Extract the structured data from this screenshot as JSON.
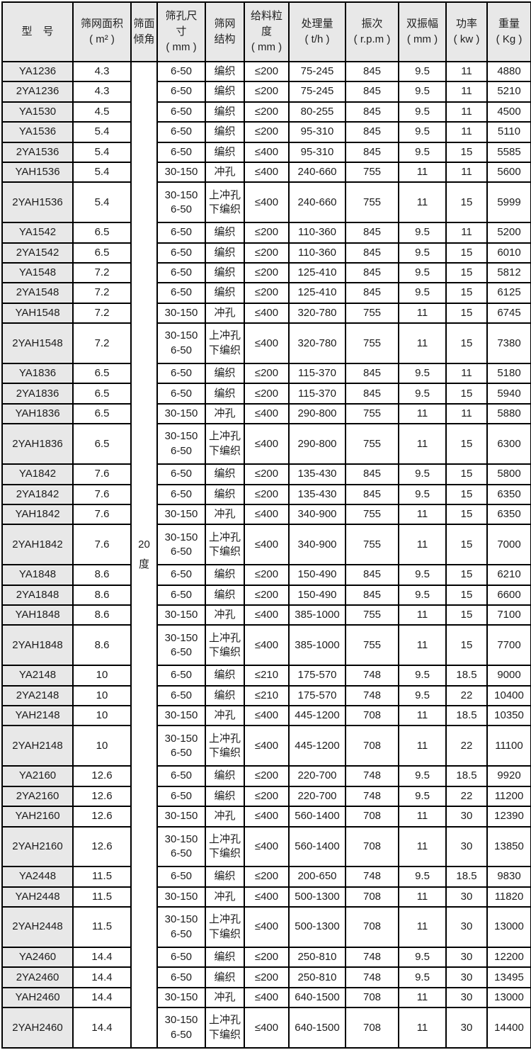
{
  "table": {
    "columns": [
      {
        "id": "model",
        "lines": [
          "型　号"
        ]
      },
      {
        "id": "area",
        "lines": [
          "筛网面积",
          "( m² )"
        ]
      },
      {
        "id": "incline",
        "lines": [
          "筛面",
          "倾角"
        ]
      },
      {
        "id": "mesh",
        "lines": [
          "筛孔尺",
          "寸",
          "( mm )"
        ]
      },
      {
        "id": "structure",
        "lines": [
          "筛网",
          "结构"
        ]
      },
      {
        "id": "feed",
        "lines": [
          "给料粒",
          "度",
          "( mm )"
        ]
      },
      {
        "id": "capacity",
        "lines": [
          "处理量",
          "( t/h )"
        ]
      },
      {
        "id": "freq",
        "lines": [
          "振次",
          "( r.p.m )"
        ]
      },
      {
        "id": "amplitude",
        "lines": [
          "双振幅",
          "( mm )"
        ]
      },
      {
        "id": "power",
        "lines": [
          "功率",
          "( kw )"
        ]
      },
      {
        "id": "weight",
        "lines": [
          "重量",
          "( Kg )"
        ]
      }
    ],
    "incline": {
      "lines": [
        "20",
        "度"
      ]
    },
    "colors": {
      "header_bg": "#e8e8e8",
      "model_col_bg": "#e8e8e8",
      "cell_bg": "#ffffff",
      "border": "#000000"
    },
    "rows": [
      {
        "model": "YA1236",
        "area": "4.3",
        "mesh": [
          "6-50"
        ],
        "structure": [
          "编织"
        ],
        "feed": "≤200",
        "capacity": "75-245",
        "freq": "845",
        "amplitude": "9.5",
        "power": "11",
        "weight": "4880"
      },
      {
        "model": "2YA1236",
        "area": "4.3",
        "mesh": [
          "6-50"
        ],
        "structure": [
          "编织"
        ],
        "feed": "≤200",
        "capacity": "75-245",
        "freq": "845",
        "amplitude": "9.5",
        "power": "11",
        "weight": "5210"
      },
      {
        "model": "YA1530",
        "area": "4.5",
        "mesh": [
          "6-50"
        ],
        "structure": [
          "编织"
        ],
        "feed": "≤200",
        "capacity": "80-255",
        "freq": "845",
        "amplitude": "9.5",
        "power": "11",
        "weight": "4500"
      },
      {
        "model": "YA1536",
        "area": "5.4",
        "mesh": [
          "6-50"
        ],
        "structure": [
          "编织"
        ],
        "feed": "≤200",
        "capacity": "95-310",
        "freq": "845",
        "amplitude": "9.5",
        "power": "11",
        "weight": "5110"
      },
      {
        "model": "2YA1536",
        "area": "5.4",
        "mesh": [
          "6-50"
        ],
        "structure": [
          "编织"
        ],
        "feed": "≤400",
        "capacity": "95-310",
        "freq": "845",
        "amplitude": "9.5",
        "power": "15",
        "weight": "5585"
      },
      {
        "model": "YAH1536",
        "area": "5.4",
        "mesh": [
          "30-150"
        ],
        "structure": [
          "冲孔"
        ],
        "feed": "≤400",
        "capacity": "240-660",
        "freq": "755",
        "amplitude": "11",
        "power": "11",
        "weight": "5600"
      },
      {
        "model": "2YAH1536",
        "area": "5.4",
        "mesh": [
          "30-150",
          "6-50"
        ],
        "structure": [
          "上冲孔",
          "下编织"
        ],
        "feed": "≤400",
        "capacity": "240-660",
        "freq": "755",
        "amplitude": "11",
        "power": "15",
        "weight": "5999"
      },
      {
        "model": "YA1542",
        "area": "6.5",
        "mesh": [
          "6-50"
        ],
        "structure": [
          "编织"
        ],
        "feed": "≤200",
        "capacity": "110-360",
        "freq": "845",
        "amplitude": "9.5",
        "power": "11",
        "weight": "5200"
      },
      {
        "model": "2YA1542",
        "area": "6.5",
        "mesh": [
          "6-50"
        ],
        "structure": [
          "编织"
        ],
        "feed": "≤200",
        "capacity": "110-360",
        "freq": "845",
        "amplitude": "9.5",
        "power": "15",
        "weight": "6010"
      },
      {
        "model": "YA1548",
        "area": "7.2",
        "mesh": [
          "6-50"
        ],
        "structure": [
          "编织"
        ],
        "feed": "≤200",
        "capacity": "125-410",
        "freq": "845",
        "amplitude": "9.5",
        "power": "15",
        "weight": "5812"
      },
      {
        "model": "2YA1548",
        "area": "7.2",
        "mesh": [
          "6-50"
        ],
        "structure": [
          "编织"
        ],
        "feed": "≤200",
        "capacity": "125-410",
        "freq": "845",
        "amplitude": "9.5",
        "power": "15",
        "weight": "6125"
      },
      {
        "model": "YAH1548",
        "area": "7.2",
        "mesh": [
          "30-150"
        ],
        "structure": [
          "冲孔"
        ],
        "feed": "≤400",
        "capacity": "320-780",
        "freq": "755",
        "amplitude": "11",
        "power": "15",
        "weight": "6745"
      },
      {
        "model": "2YAH1548",
        "area": "7.2",
        "mesh": [
          "30-150",
          "6-50"
        ],
        "structure": [
          "上冲孔",
          "下编织"
        ],
        "feed": "≤400",
        "capacity": "320-780",
        "freq": "755",
        "amplitude": "11",
        "power": "15",
        "weight": "7380"
      },
      {
        "model": "YA1836",
        "area": "6.5",
        "mesh": [
          "6-50"
        ],
        "structure": [
          "编织"
        ],
        "feed": "≤200",
        "capacity": "115-370",
        "freq": "845",
        "amplitude": "9.5",
        "power": "11",
        "weight": "5180"
      },
      {
        "model": "2YA1836",
        "area": "6.5",
        "mesh": [
          "6-50"
        ],
        "structure": [
          "编织"
        ],
        "feed": "≤200",
        "capacity": "115-370",
        "freq": "845",
        "amplitude": "9.5",
        "power": "15",
        "weight": "5940"
      },
      {
        "model": "YAH1836",
        "area": "6.5",
        "mesh": [
          "30-150"
        ],
        "structure": [
          "冲孔"
        ],
        "feed": "≤400",
        "capacity": "290-800",
        "freq": "755",
        "amplitude": "11",
        "power": "11",
        "weight": "5880"
      },
      {
        "model": "2YAH1836",
        "area": "6.5",
        "mesh": [
          "30-150",
          "6-50"
        ],
        "structure": [
          "上冲孔",
          "下编织"
        ],
        "feed": "≤400",
        "capacity": "290-800",
        "freq": "755",
        "amplitude": "11",
        "power": "15",
        "weight": "6300"
      },
      {
        "model": "YA1842",
        "area": "7.6",
        "mesh": [
          "6-50"
        ],
        "structure": [
          "编织"
        ],
        "feed": "≤200",
        "capacity": "135-430",
        "freq": "845",
        "amplitude": "9.5",
        "power": "15",
        "weight": "5800"
      },
      {
        "model": "2YA1842",
        "area": "7.6",
        "mesh": [
          "6-50"
        ],
        "structure": [
          "编织"
        ],
        "feed": "≤200",
        "capacity": "135-430",
        "freq": "845",
        "amplitude": "9.5",
        "power": "15",
        "weight": "6350"
      },
      {
        "model": "YAH1842",
        "area": "7.6",
        "mesh": [
          "30-150"
        ],
        "structure": [
          "冲孔"
        ],
        "feed": "≤400",
        "capacity": "340-900",
        "freq": "755",
        "amplitude": "11",
        "power": "15",
        "weight": "6350"
      },
      {
        "model": "2YAH1842",
        "area": "7.6",
        "mesh": [
          "30-150",
          "6-50"
        ],
        "structure": [
          "上冲孔",
          "下编织"
        ],
        "feed": "≤400",
        "capacity": "340-900",
        "freq": "755",
        "amplitude": "11",
        "power": "15",
        "weight": "7000"
      },
      {
        "model": "YA1848",
        "area": "8.6",
        "mesh": [
          "6-50"
        ],
        "structure": [
          "编织"
        ],
        "feed": "≤200",
        "capacity": "150-490",
        "freq": "845",
        "amplitude": "9.5",
        "power": "15",
        "weight": "6210"
      },
      {
        "model": "2YA1848",
        "area": "8.6",
        "mesh": [
          "6-50"
        ],
        "structure": [
          "编织"
        ],
        "feed": "≤200",
        "capacity": "150-490",
        "freq": "845",
        "amplitude": "9.5",
        "power": "15",
        "weight": "6600"
      },
      {
        "model": "YAH1848",
        "area": "8.6",
        "mesh": [
          "30-150"
        ],
        "structure": [
          "冲孔"
        ],
        "feed": "≤400",
        "capacity": "385-1000",
        "freq": "755",
        "amplitude": "11",
        "power": "15",
        "weight": "7100"
      },
      {
        "model": "2YAH1848",
        "area": "8.6",
        "mesh": [
          "30-150",
          "6-50"
        ],
        "structure": [
          "上冲孔",
          "下编织"
        ],
        "feed": "≤400",
        "capacity": "385-1000",
        "freq": "755",
        "amplitude": "11",
        "power": "15",
        "weight": "7700"
      },
      {
        "model": "YA2148",
        "area": "10",
        "mesh": [
          "6-50"
        ],
        "structure": [
          "编织"
        ],
        "feed": "≤210",
        "capacity": "175-570",
        "freq": "748",
        "amplitude": "9.5",
        "power": "18.5",
        "weight": "9000"
      },
      {
        "model": "2YA2148",
        "area": "10",
        "mesh": [
          "6-50"
        ],
        "structure": [
          "编织"
        ],
        "feed": "≤210",
        "capacity": "175-570",
        "freq": "748",
        "amplitude": "9.5",
        "power": "22",
        "weight": "10400"
      },
      {
        "model": "YAH2148",
        "area": "10",
        "mesh": [
          "30-150"
        ],
        "structure": [
          "冲孔"
        ],
        "feed": "≤400",
        "capacity": "445-1200",
        "freq": "708",
        "amplitude": "11",
        "power": "18.5",
        "weight": "10350"
      },
      {
        "model": "2YAH2148",
        "area": "10",
        "mesh": [
          "30-150",
          "6-50"
        ],
        "structure": [
          "上冲孔",
          "下编织"
        ],
        "feed": "≤400",
        "capacity": "445-1200",
        "freq": "708",
        "amplitude": "11",
        "power": "22",
        "weight": "11100"
      },
      {
        "model": "YA2160",
        "area": "12.6",
        "mesh": [
          "6-50"
        ],
        "structure": [
          "编织"
        ],
        "feed": "≤200",
        "capacity": "220-700",
        "freq": "748",
        "amplitude": "9.5",
        "power": "18.5",
        "weight": "9920"
      },
      {
        "model": "2YA2160",
        "area": "12.6",
        "mesh": [
          "6-50"
        ],
        "structure": [
          "编织"
        ],
        "feed": "≤200",
        "capacity": "220-700",
        "freq": "748",
        "amplitude": "9.5",
        "power": "22",
        "weight": "11200"
      },
      {
        "model": "YAH2160",
        "area": "12.6",
        "mesh": [
          "30-150"
        ],
        "structure": [
          "冲孔"
        ],
        "feed": "≤400",
        "capacity": "560-1400",
        "freq": "708",
        "amplitude": "11",
        "power": "30",
        "weight": "12390"
      },
      {
        "model": "2YAH2160",
        "area": "12.6",
        "mesh": [
          "30-150",
          "6-50"
        ],
        "structure": [
          "上冲孔",
          "下编织"
        ],
        "feed": "≤400",
        "capacity": "560-1400",
        "freq": "708",
        "amplitude": "11",
        "power": "30",
        "weight": "13850"
      },
      {
        "model": "YA2448",
        "area": "11.5",
        "mesh": [
          "6-50"
        ],
        "structure": [
          "编织"
        ],
        "feed": "≤200",
        "capacity": "200-650",
        "freq": "748",
        "amplitude": "9.5",
        "power": "18.5",
        "weight": "9830"
      },
      {
        "model": "YAH2448",
        "area": "11.5",
        "mesh": [
          "30-150"
        ],
        "structure": [
          "冲孔"
        ],
        "feed": "≤400",
        "capacity": "500-1300",
        "freq": "708",
        "amplitude": "11",
        "power": "30",
        "weight": "11820"
      },
      {
        "model": "2YAH2448",
        "area": "11.5",
        "mesh": [
          "30-150",
          "6-50"
        ],
        "structure": [
          "上冲孔",
          "下编织"
        ],
        "feed": "≤400",
        "capacity": "500-1300",
        "freq": "708",
        "amplitude": "11",
        "power": "30",
        "weight": "13000"
      },
      {
        "model": "YA2460",
        "area": "14.4",
        "mesh": [
          "6-50"
        ],
        "structure": [
          "编织"
        ],
        "feed": "≤200",
        "capacity": "250-810",
        "freq": "748",
        "amplitude": "9.5",
        "power": "30",
        "weight": "12200"
      },
      {
        "model": "2YA2460",
        "area": "14.4",
        "mesh": [
          "6-50"
        ],
        "structure": [
          "编织"
        ],
        "feed": "≤200",
        "capacity": "250-810",
        "freq": "748",
        "amplitude": "9.5",
        "power": "30",
        "weight": "13495"
      },
      {
        "model": "YAH2460",
        "area": "14.4",
        "mesh": [
          "30-150"
        ],
        "structure": [
          "冲孔"
        ],
        "feed": "≤400",
        "capacity": "640-1500",
        "freq": "708",
        "amplitude": "11",
        "power": "30",
        "weight": "13000"
      },
      {
        "model": "2YAH2460",
        "area": "14.4",
        "mesh": [
          "30-150",
          "6-50"
        ],
        "structure": [
          "上冲孔",
          "下编织"
        ],
        "feed": "≤400",
        "capacity": "640-1500",
        "freq": "708",
        "amplitude": "11",
        "power": "30",
        "weight": "14400"
      }
    ]
  }
}
